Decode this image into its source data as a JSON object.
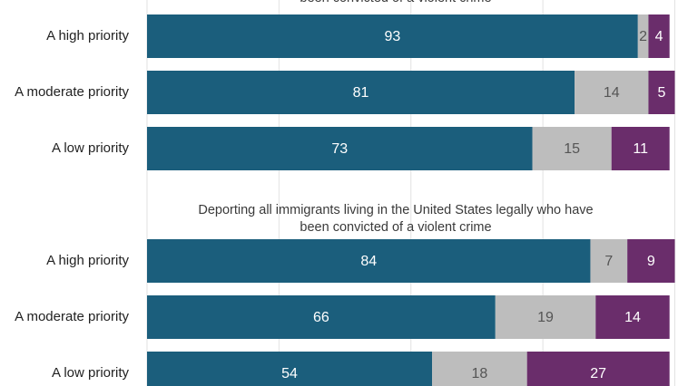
{
  "chart_data": {
    "type": "bar",
    "orientation": "horizontal",
    "stacked": true,
    "xlim": [
      0,
      100
    ],
    "grid": true,
    "legend": "none",
    "colors": [
      "#1b5e7c",
      "#bdbdbd",
      "#6a2d6b"
    ],
    "label_colors": [
      "#ffffff",
      "#555555",
      "#ffffff"
    ],
    "panels": [
      {
        "title": "been convicted of a violent crime",
        "categories": [
          "A high priority",
          "A moderate priority",
          "A low priority"
        ],
        "series": [
          {
            "values": [
              93,
              81,
              73
            ]
          },
          {
            "values": [
              2,
              14,
              15
            ]
          },
          {
            "values": [
              4,
              5,
              11
            ]
          }
        ]
      },
      {
        "title": "Deporting all immigrants living in the United States legally who have been convicted of a violent crime",
        "categories": [
          "A high priority",
          "A moderate priority",
          "A low priority"
        ],
        "series": [
          {
            "values": [
              84,
              66,
              54
            ]
          },
          {
            "values": [
              7,
              19,
              18
            ]
          },
          {
            "values": [
              9,
              14,
              27
            ]
          }
        ]
      }
    ]
  }
}
